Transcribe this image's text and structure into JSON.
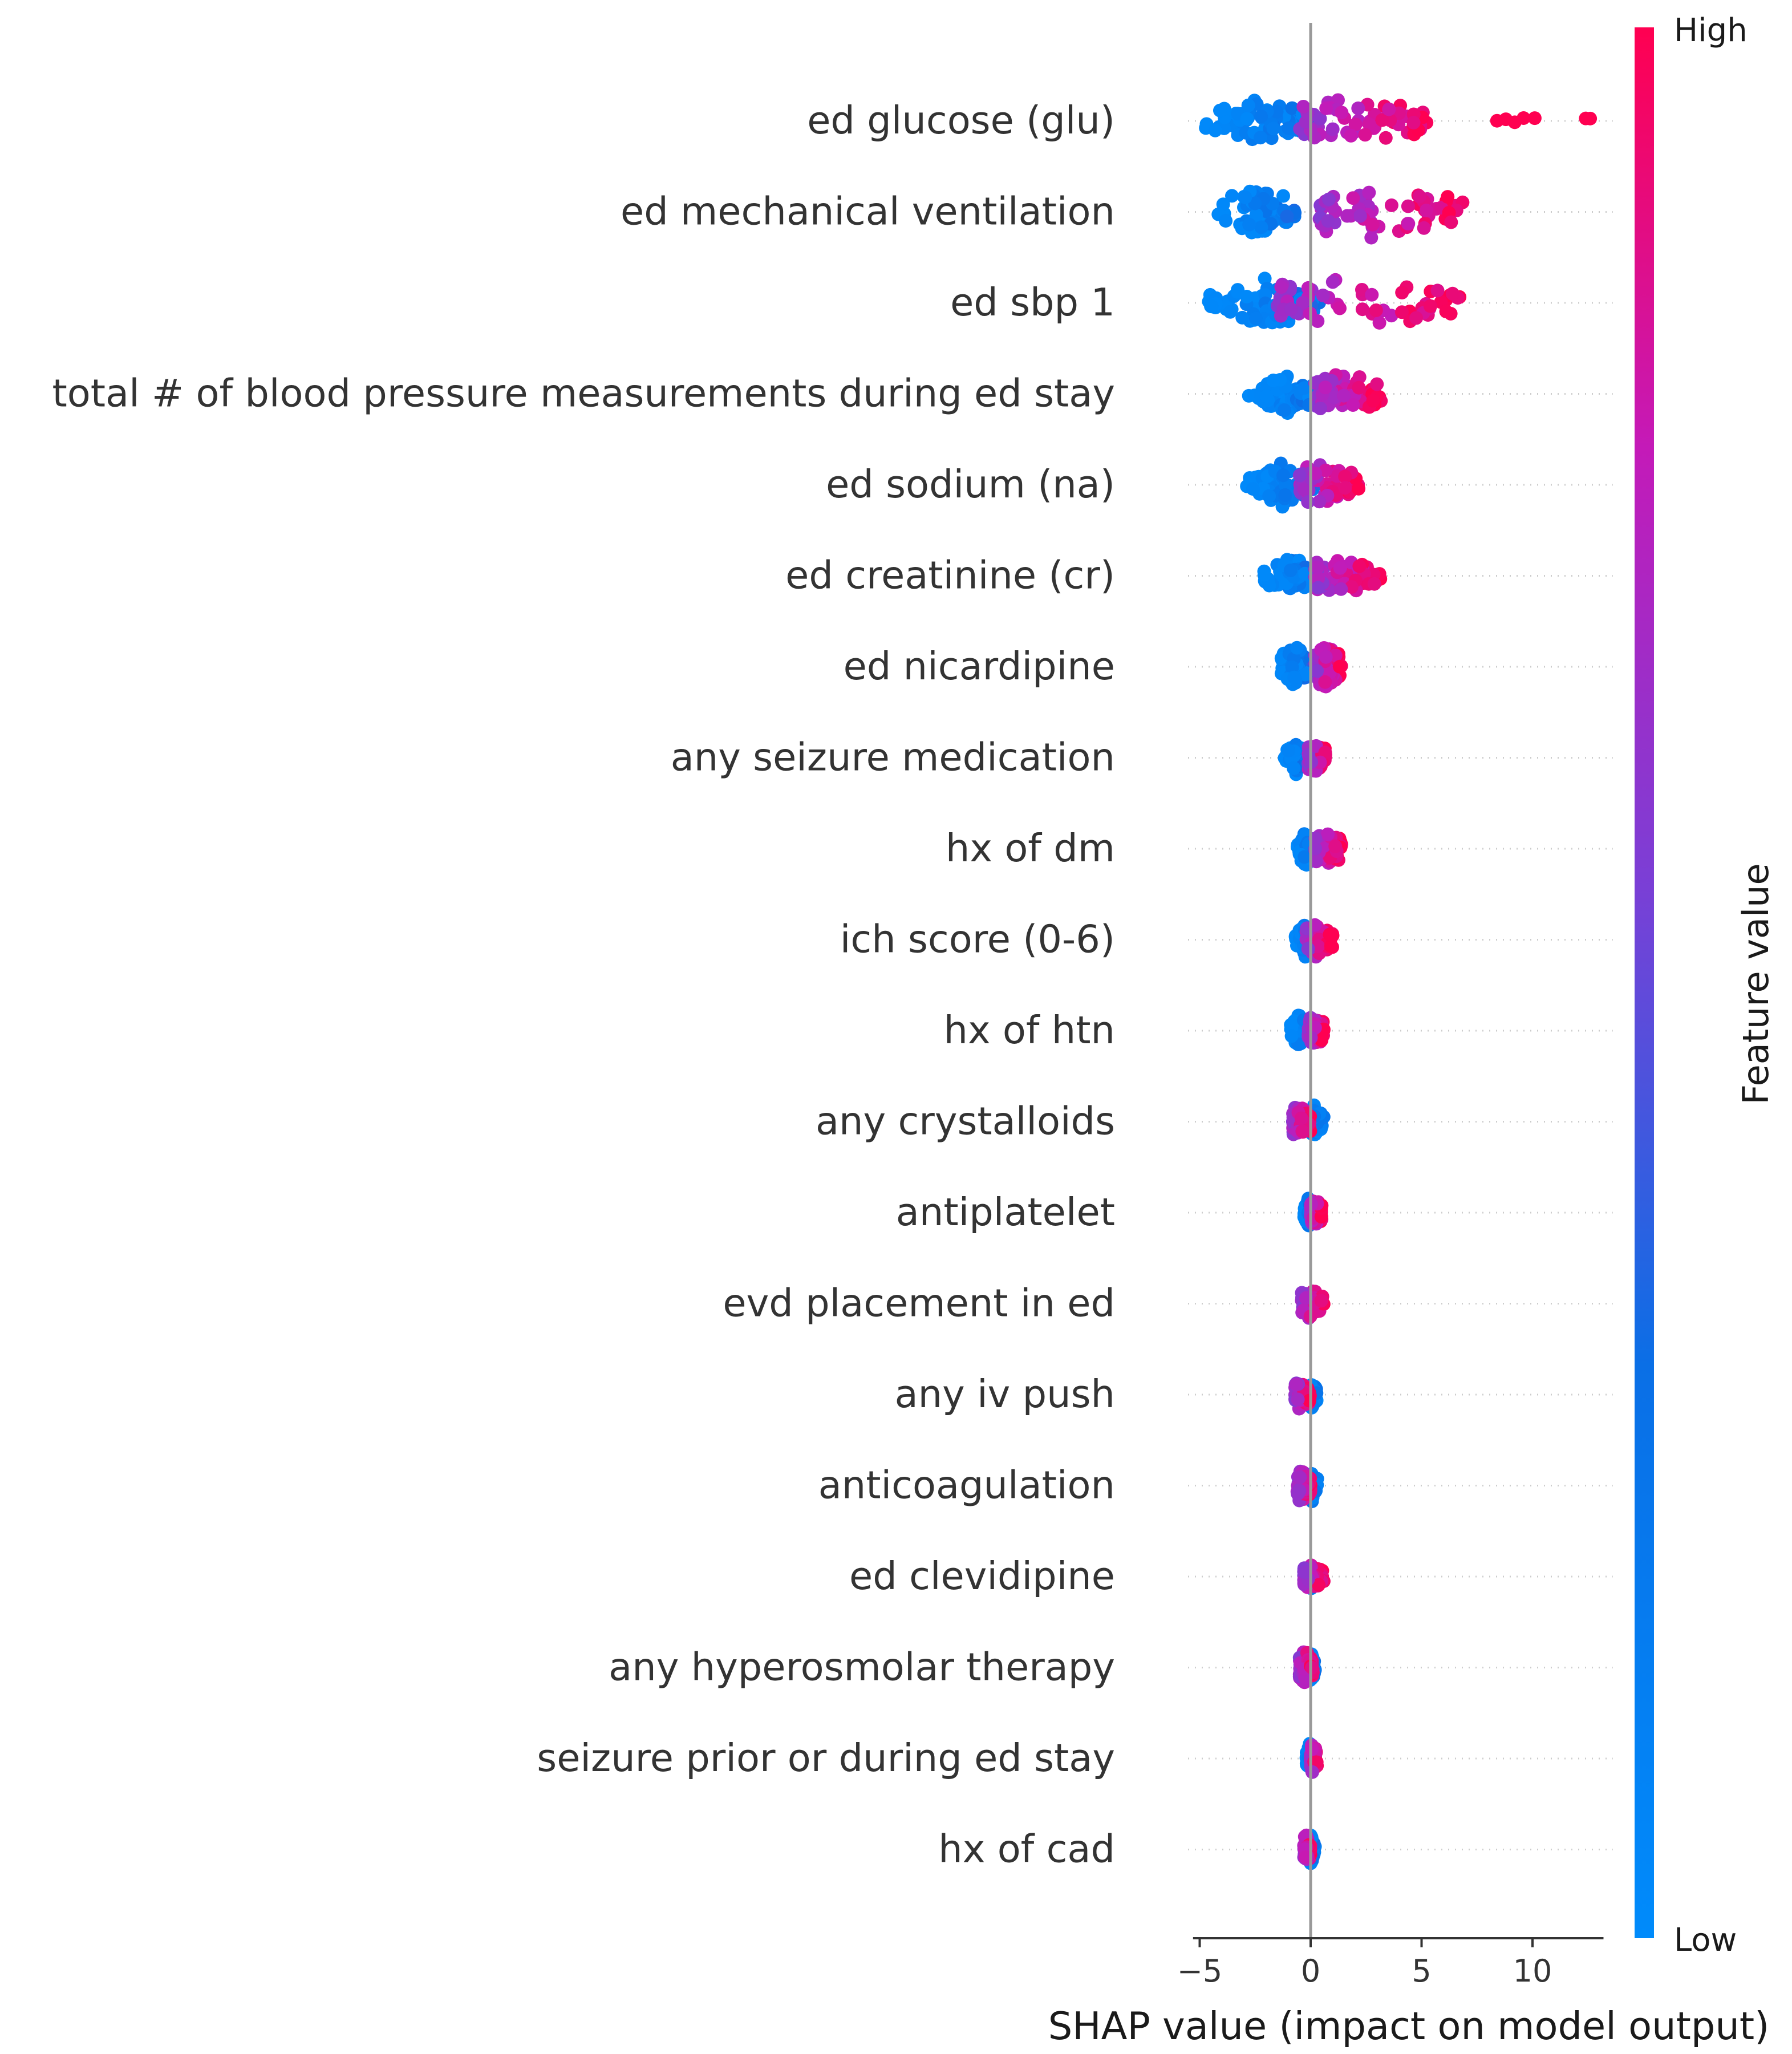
{
  "chart_data": {
    "type": "scatter",
    "subtype": "shap-beeswarm",
    "xlabel": "SHAP value (impact on model output)",
    "xlim": [
      -5.3,
      13.2
    ],
    "xticks": [
      -5,
      0,
      5,
      10
    ],
    "xtick_labels": [
      "−5",
      "0",
      "5",
      "10"
    ],
    "colorbar": {
      "title": "Feature value",
      "high_label": "High",
      "low_label": "Low",
      "high_color": "#ff0051",
      "low_color": "#008bfb"
    },
    "features": [
      {
        "name": "ed glucose (glu)",
        "low_range": [
          -4.8,
          0.4
        ],
        "high_range": [
          -0.5,
          5.5
        ],
        "outliers": [
          8.4,
          8.8,
          9.2,
          9.6,
          10.1,
          12.4,
          12.6
        ],
        "spread": 0.75
      },
      {
        "name": "ed mechanical ventilation",
        "low_range": [
          -4.2,
          -0.5
        ],
        "high_range": [
          0.4,
          7.0
        ],
        "outliers": [],
        "spread": 0.8
      },
      {
        "name": "ed sbp 1",
        "low_range": [
          -4.6,
          0.5
        ],
        "high_range": [
          -1.5,
          6.8
        ],
        "outliers": [],
        "spread": 0.75
      },
      {
        "name": "total # of blood pressure measurements during ed stay",
        "low_range": [
          -2.8,
          0.6
        ],
        "high_range": [
          0.2,
          3.2
        ],
        "outliers": [],
        "spread": 0.65
      },
      {
        "name": "ed sodium (na)",
        "low_range": [
          -2.9,
          0.3
        ],
        "high_range": [
          -0.5,
          2.2
        ],
        "outliers": [],
        "spread": 0.65
      },
      {
        "name": "ed creatinine (cr)",
        "low_range": [
          -2.2,
          0.4
        ],
        "high_range": [
          0.2,
          3.2
        ],
        "outliers": [],
        "spread": 0.55
      },
      {
        "name": "ed nicardipine",
        "low_range": [
          -1.4,
          -0.1
        ],
        "high_range": [
          0.2,
          1.4
        ],
        "outliers": [],
        "spread": 0.7
      },
      {
        "name": "any seizure medication",
        "low_range": [
          -1.2,
          -0.1
        ],
        "high_range": [
          -0.1,
          0.7
        ],
        "outliers": [],
        "spread": 0.5
      },
      {
        "name": "hx of dm",
        "low_range": [
          -0.6,
          0.1
        ],
        "high_range": [
          0.2,
          1.4
        ],
        "outliers": [],
        "spread": 0.55
      },
      {
        "name": "ich score (0-6)",
        "low_range": [
          -0.7,
          0.3
        ],
        "high_range": [
          -0.2,
          1.0
        ],
        "outliers": [],
        "spread": 0.55
      },
      {
        "name": "hx of htn",
        "low_range": [
          -0.9,
          -0.1
        ],
        "high_range": [
          -0.1,
          0.6
        ],
        "outliers": [],
        "spread": 0.5
      },
      {
        "name": "any crystalloids",
        "low_range": [
          -0.3,
          0.6
        ],
        "high_range": [
          -0.8,
          0.0
        ],
        "outliers": [],
        "spread": 0.5
      },
      {
        "name": "antiplatelet",
        "low_range": [
          -0.3,
          0.1
        ],
        "high_range": [
          0.0,
          0.5
        ],
        "outliers": [],
        "spread": 0.45
      },
      {
        "name": "evd placement in ed",
        "low_range": [
          -0.3,
          0.2
        ],
        "high_range": [
          -0.4,
          0.6
        ],
        "outliers": [],
        "spread": 0.45
      },
      {
        "name": "any iv push",
        "low_range": [
          -0.2,
          0.3
        ],
        "high_range": [
          -0.7,
          0.0
        ],
        "outliers": [],
        "spread": 0.45
      },
      {
        "name": "anticoagulation",
        "low_range": [
          -0.2,
          0.3
        ],
        "high_range": [
          -0.6,
          0.0
        ],
        "outliers": [],
        "spread": 0.5
      },
      {
        "name": "ed clevidipine",
        "low_range": [
          -0.2,
          0.3
        ],
        "high_range": [
          -0.3,
          0.6
        ],
        "outliers": [],
        "spread": 0.4
      },
      {
        "name": "any hyperosmolar therapy",
        "low_range": [
          -0.2,
          0.2
        ],
        "high_range": [
          -0.5,
          0.1
        ],
        "outliers": [],
        "spread": 0.5
      },
      {
        "name": "seizure prior or during ed stay",
        "low_range": [
          -0.2,
          0.2
        ],
        "high_range": [
          0.0,
          0.3
        ],
        "outliers": [],
        "spread": 0.5
      },
      {
        "name": "hx of cad",
        "low_range": [
          -0.2,
          0.2
        ],
        "high_range": [
          -0.3,
          0.0
        ],
        "outliers": [],
        "spread": 0.45
      }
    ]
  }
}
